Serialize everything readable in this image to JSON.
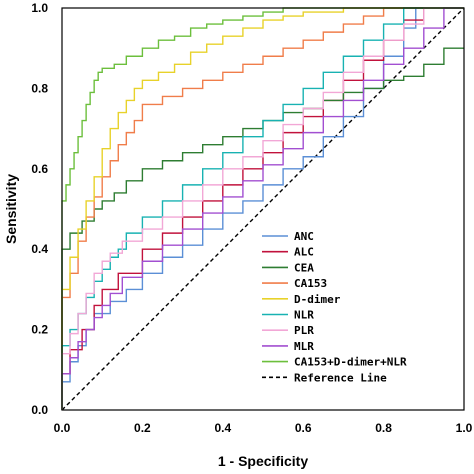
{
  "chart_data": {
    "type": "line",
    "xlabel": "1 - Specificity",
    "ylabel": "Sensitivity",
    "xlim": [
      0,
      1
    ],
    "ylim": [
      0,
      1
    ],
    "x_ticks": [
      "0.0",
      "0.2",
      "0.4",
      "0.6",
      "0.8",
      "1.0"
    ],
    "y_ticks": [
      "0.0",
      "0.2",
      "0.4",
      "0.6",
      "0.8",
      "1.0"
    ],
    "grid": false,
    "legend_position": "bottom-right",
    "series": [
      {
        "name": "ANC",
        "color": "#5b8fd6",
        "dash": "",
        "points": [
          [
            0,
            0
          ],
          [
            0,
            0.03
          ],
          [
            0.02,
            0.07
          ],
          [
            0.04,
            0.12
          ],
          [
            0.06,
            0.16
          ],
          [
            0.08,
            0.2
          ],
          [
            0.12,
            0.24
          ],
          [
            0.16,
            0.27
          ],
          [
            0.2,
            0.3
          ],
          [
            0.25,
            0.34
          ],
          [
            0.3,
            0.38
          ],
          [
            0.35,
            0.41
          ],
          [
            0.4,
            0.45
          ],
          [
            0.45,
            0.49
          ],
          [
            0.5,
            0.52
          ],
          [
            0.55,
            0.56
          ],
          [
            0.6,
            0.6
          ],
          [
            0.65,
            0.63
          ],
          [
            0.7,
            0.68
          ],
          [
            0.75,
            0.73
          ],
          [
            0.8,
            0.8
          ],
          [
            0.85,
            0.88
          ],
          [
            0.88,
            0.95
          ],
          [
            0.9,
            1
          ],
          [
            1,
            1
          ]
        ]
      },
      {
        "name": "ALC",
        "color": "#c1123c",
        "dash": "",
        "points": [
          [
            0,
            0
          ],
          [
            0,
            0.04
          ],
          [
            0.02,
            0.09
          ],
          [
            0.05,
            0.15
          ],
          [
            0.08,
            0.2
          ],
          [
            0.1,
            0.26
          ],
          [
            0.14,
            0.3
          ],
          [
            0.2,
            0.34
          ],
          [
            0.25,
            0.4
          ],
          [
            0.3,
            0.44
          ],
          [
            0.35,
            0.48
          ],
          [
            0.4,
            0.52
          ],
          [
            0.45,
            0.56
          ],
          [
            0.5,
            0.6
          ],
          [
            0.55,
            0.64
          ],
          [
            0.6,
            0.69
          ],
          [
            0.65,
            0.73
          ],
          [
            0.7,
            0.77
          ],
          [
            0.75,
            0.82
          ],
          [
            0.8,
            0.87
          ],
          [
            0.85,
            0.92
          ],
          [
            0.9,
            0.97
          ],
          [
            0.95,
            1
          ],
          [
            1,
            1
          ]
        ]
      },
      {
        "name": "CEA",
        "color": "#2e7d32",
        "dash": "",
        "points": [
          [
            0,
            0
          ],
          [
            0,
            0.38
          ],
          [
            0.02,
            0.4
          ],
          [
            0.05,
            0.44
          ],
          [
            0.08,
            0.47
          ],
          [
            0.1,
            0.5
          ],
          [
            0.13,
            0.52
          ],
          [
            0.16,
            0.54
          ],
          [
            0.2,
            0.57
          ],
          [
            0.25,
            0.6
          ],
          [
            0.3,
            0.62
          ],
          [
            0.35,
            0.64
          ],
          [
            0.4,
            0.66
          ],
          [
            0.45,
            0.68
          ],
          [
            0.5,
            0.7
          ],
          [
            0.55,
            0.72
          ],
          [
            0.6,
            0.74
          ],
          [
            0.65,
            0.75
          ],
          [
            0.7,
            0.77
          ],
          [
            0.75,
            0.79
          ],
          [
            0.8,
            0.8
          ],
          [
            0.85,
            0.82
          ],
          [
            0.9,
            0.83
          ],
          [
            0.95,
            0.86
          ],
          [
            1,
            0.9
          ]
        ]
      },
      {
        "name": "CA153",
        "color": "#f07d4a",
        "dash": "",
        "points": [
          [
            0,
            0
          ],
          [
            0,
            0.22
          ],
          [
            0.02,
            0.28
          ],
          [
            0.04,
            0.34
          ],
          [
            0.06,
            0.42
          ],
          [
            0.08,
            0.48
          ],
          [
            0.1,
            0.53
          ],
          [
            0.12,
            0.58
          ],
          [
            0.14,
            0.62
          ],
          [
            0.16,
            0.66
          ],
          [
            0.18,
            0.69
          ],
          [
            0.2,
            0.72
          ],
          [
            0.25,
            0.76
          ],
          [
            0.3,
            0.78
          ],
          [
            0.35,
            0.8
          ],
          [
            0.4,
            0.82
          ],
          [
            0.45,
            0.84
          ],
          [
            0.5,
            0.86
          ],
          [
            0.55,
            0.88
          ],
          [
            0.6,
            0.9
          ],
          [
            0.65,
            0.92
          ],
          [
            0.7,
            0.94
          ],
          [
            0.75,
            0.96
          ],
          [
            0.8,
            0.98
          ],
          [
            0.85,
            1
          ],
          [
            1,
            1
          ]
        ]
      },
      {
        "name": "D-dimer",
        "color": "#e8d22a",
        "dash": "",
        "points": [
          [
            0,
            0
          ],
          [
            0,
            0.25
          ],
          [
            0.02,
            0.3
          ],
          [
            0.04,
            0.38
          ],
          [
            0.06,
            0.45
          ],
          [
            0.08,
            0.52
          ],
          [
            0.1,
            0.58
          ],
          [
            0.12,
            0.65
          ],
          [
            0.14,
            0.7
          ],
          [
            0.16,
            0.74
          ],
          [
            0.18,
            0.77
          ],
          [
            0.2,
            0.8
          ],
          [
            0.24,
            0.82
          ],
          [
            0.28,
            0.84
          ],
          [
            0.32,
            0.86
          ],
          [
            0.36,
            0.89
          ],
          [
            0.4,
            0.91
          ],
          [
            0.45,
            0.93
          ],
          [
            0.5,
            0.95
          ],
          [
            0.55,
            0.97
          ],
          [
            0.6,
            0.98
          ],
          [
            0.7,
            0.99
          ],
          [
            0.73,
            1
          ],
          [
            1,
            1
          ]
        ]
      },
      {
        "name": "NLR",
        "color": "#18b2b2",
        "dash": "",
        "points": [
          [
            0,
            0
          ],
          [
            0,
            0.1
          ],
          [
            0.02,
            0.16
          ],
          [
            0.04,
            0.2
          ],
          [
            0.06,
            0.24
          ],
          [
            0.08,
            0.28
          ],
          [
            0.1,
            0.32
          ],
          [
            0.12,
            0.35
          ],
          [
            0.14,
            0.38
          ],
          [
            0.16,
            0.4
          ],
          [
            0.2,
            0.44
          ],
          [
            0.25,
            0.48
          ],
          [
            0.3,
            0.52
          ],
          [
            0.35,
            0.56
          ],
          [
            0.4,
            0.6
          ],
          [
            0.45,
            0.64
          ],
          [
            0.5,
            0.68
          ],
          [
            0.55,
            0.72
          ],
          [
            0.6,
            0.76
          ],
          [
            0.65,
            0.8
          ],
          [
            0.7,
            0.84
          ],
          [
            0.75,
            0.88
          ],
          [
            0.8,
            0.92
          ],
          [
            0.85,
            0.96
          ],
          [
            0.9,
            1
          ],
          [
            1,
            1
          ]
        ]
      },
      {
        "name": "PLR",
        "color": "#f2a7d6",
        "dash": "",
        "points": [
          [
            0,
            0
          ],
          [
            0,
            0.08
          ],
          [
            0.02,
            0.14
          ],
          [
            0.04,
            0.19
          ],
          [
            0.06,
            0.24
          ],
          [
            0.08,
            0.29
          ],
          [
            0.1,
            0.34
          ],
          [
            0.12,
            0.37
          ],
          [
            0.15,
            0.39
          ],
          [
            0.2,
            0.42
          ],
          [
            0.25,
            0.45
          ],
          [
            0.3,
            0.48
          ],
          [
            0.35,
            0.52
          ],
          [
            0.4,
            0.56
          ],
          [
            0.45,
            0.6
          ],
          [
            0.5,
            0.63
          ],
          [
            0.55,
            0.67
          ],
          [
            0.6,
            0.71
          ],
          [
            0.65,
            0.75
          ],
          [
            0.7,
            0.79
          ],
          [
            0.75,
            0.84
          ],
          [
            0.8,
            0.88
          ],
          [
            0.85,
            0.92
          ],
          [
            0.9,
            0.96
          ],
          [
            0.95,
            1
          ],
          [
            1,
            1
          ]
        ]
      },
      {
        "name": "MLR",
        "color": "#a24fd1",
        "dash": "",
        "points": [
          [
            0,
            0
          ],
          [
            0,
            0.05
          ],
          [
            0.02,
            0.09
          ],
          [
            0.04,
            0.13
          ],
          [
            0.06,
            0.17
          ],
          [
            0.08,
            0.2
          ],
          [
            0.1,
            0.23
          ],
          [
            0.12,
            0.26
          ],
          [
            0.15,
            0.29
          ],
          [
            0.2,
            0.33
          ],
          [
            0.25,
            0.37
          ],
          [
            0.3,
            0.41
          ],
          [
            0.35,
            0.45
          ],
          [
            0.4,
            0.49
          ],
          [
            0.45,
            0.53
          ],
          [
            0.5,
            0.57
          ],
          [
            0.55,
            0.61
          ],
          [
            0.6,
            0.65
          ],
          [
            0.65,
            0.69
          ],
          [
            0.7,
            0.73
          ],
          [
            0.75,
            0.77
          ],
          [
            0.8,
            0.82
          ],
          [
            0.85,
            0.86
          ],
          [
            0.9,
            0.9
          ],
          [
            0.95,
            0.95
          ],
          [
            1,
            1
          ]
        ]
      },
      {
        "name": "CA153+D-dimer+NLR",
        "color": "#6cbf3c",
        "dash": "",
        "points": [
          [
            0,
            0
          ],
          [
            0,
            0.48
          ],
          [
            0.01,
            0.52
          ],
          [
            0.02,
            0.56
          ],
          [
            0.03,
            0.6
          ],
          [
            0.04,
            0.64
          ],
          [
            0.05,
            0.68
          ],
          [
            0.06,
            0.72
          ],
          [
            0.07,
            0.76
          ],
          [
            0.08,
            0.79
          ],
          [
            0.09,
            0.82
          ],
          [
            0.1,
            0.84
          ],
          [
            0.13,
            0.85
          ],
          [
            0.16,
            0.86
          ],
          [
            0.2,
            0.88
          ],
          [
            0.24,
            0.9
          ],
          [
            0.28,
            0.92
          ],
          [
            0.32,
            0.93
          ],
          [
            0.36,
            0.95
          ],
          [
            0.4,
            0.96
          ],
          [
            0.45,
            0.97
          ],
          [
            0.5,
            0.98
          ],
          [
            0.55,
            0.99
          ],
          [
            0.6,
            1
          ],
          [
            1,
            1
          ]
        ]
      },
      {
        "name": "Reference Line",
        "color": "#000000",
        "dash": "4,3",
        "points": [
          [
            0,
            0
          ],
          [
            1,
            1
          ]
        ]
      }
    ]
  }
}
